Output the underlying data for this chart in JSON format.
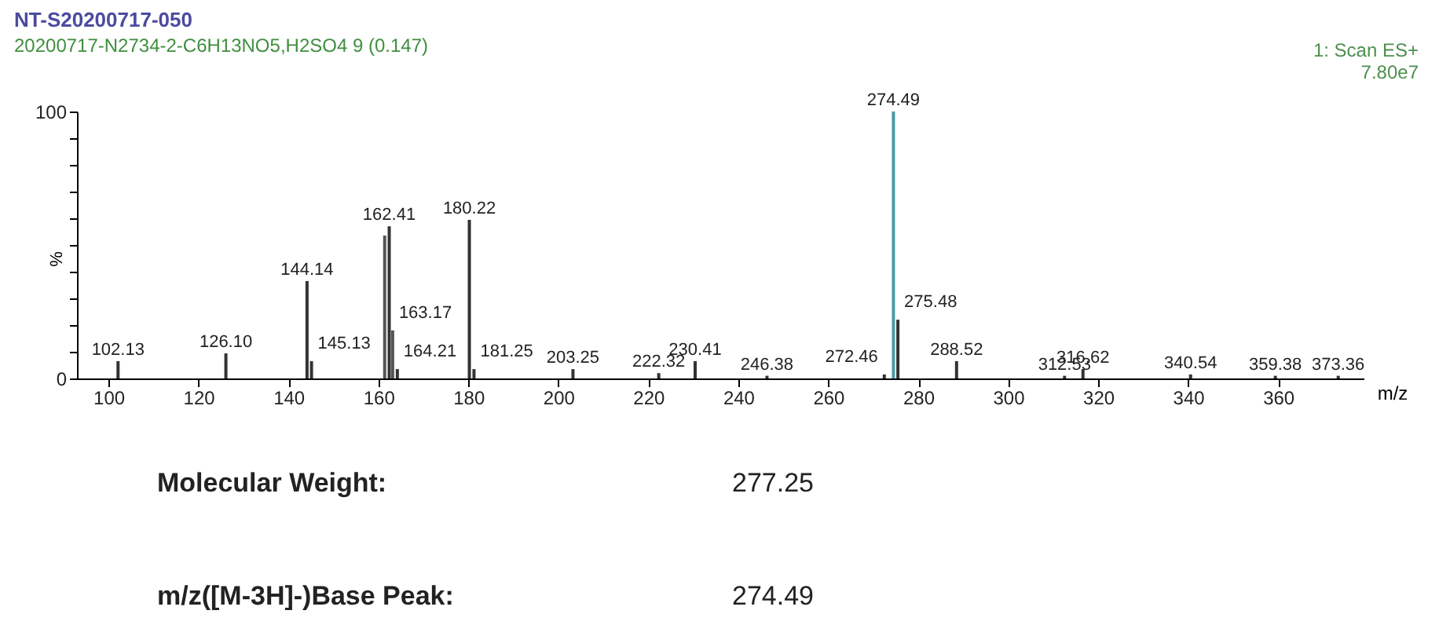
{
  "chart_data": {
    "type": "bar",
    "title": "NT-S20200717-050",
    "subtitle": "20200717-N2734-2-C6H13NO5,H2SO4 9 (0.147)",
    "xlabel": "m/z",
    "ylabel": "%",
    "x": [
      102.13,
      126.1,
      144.14,
      145.13,
      161.4,
      162.41,
      163.17,
      164.21,
      180.22,
      181.25,
      203.25,
      222.32,
      230.41,
      246.38,
      272.46,
      274.49,
      275.48,
      288.52,
      312.53,
      316.62,
      340.54,
      359.38,
      373.36
    ],
    "values": [
      6.5,
      9.4,
      36.5,
      6.5,
      53.5,
      57,
      18,
      3.5,
      59.4,
      3.5,
      3.5,
      2,
      6.5,
      1,
      1.5,
      100,
      22,
      6.5,
      1,
      3.5,
      1.5,
      1,
      1
    ],
    "colors": [
      "#333333",
      "#333333",
      "#333333",
      "#333333",
      "#555555",
      "#333333",
      "#555555",
      "#333333",
      "#333333",
      "#333333",
      "#333333",
      "#333333",
      "#333333",
      "#333333",
      "#333333",
      "#4a9aa8",
      "#333333",
      "#333333",
      "#333333",
      "#333333",
      "#333333",
      "#333333",
      "#333333"
    ],
    "xlim": [
      93,
      379
    ],
    "xticks": [
      100,
      120,
      140,
      160,
      180,
      200,
      220,
      240,
      260,
      280,
      300,
      320,
      340,
      360
    ],
    "ylim": [
      0,
      100
    ],
    "yticks": [
      0,
      {
        "value": 10,
        "label": null
      },
      {
        "value": 20,
        "label": null
      },
      {
        "value": 30,
        "label": null
      },
      {
        "value": 40,
        "label": null
      },
      {
        "value": 50,
        "label": null
      },
      {
        "value": 60,
        "label": null
      },
      {
        "value": 70,
        "label": null
      },
      {
        "value": 80,
        "label": null
      },
      {
        "value": 90,
        "label": null
      },
      100
    ],
    "grid": false,
    "annotations": [
      {
        "text": "102.13",
        "x": 102.13,
        "y": 6.5
      },
      {
        "text": "126.10",
        "x": 126.1,
        "y": 9.4
      },
      {
        "text": "144.14",
        "x": 144.14,
        "y": 36.5
      },
      {
        "text": "145.13",
        "x": 145.13,
        "y": 6.5
      },
      {
        "text": "162.41",
        "x": 162.41,
        "y": 57
      },
      {
        "text": "163.17",
        "x": 163.17,
        "y": 18
      },
      {
        "text": "164.21",
        "x": 164.21,
        "y": 3.5
      },
      {
        "text": "180.22",
        "x": 180.22,
        "y": 59.4
      },
      {
        "text": "181.25",
        "x": 181.25,
        "y": 3.5
      },
      {
        "text": "203.25",
        "x": 203.25,
        "y": 3.5
      },
      {
        "text": "222.32",
        "x": 222.32,
        "y": 2
      },
      {
        "text": "230.41",
        "x": 230.41,
        "y": 6.5
      },
      {
        "text": "246.38",
        "x": 246.38,
        "y": 1
      },
      {
        "text": "272.46",
        "x": 272.46,
        "y": 1.5
      },
      {
        "text": "274.49",
        "x": 274.49,
        "y": 100
      },
      {
        "text": "275.48",
        "x": 275.48,
        "y": 22
      },
      {
        "text": "288.52",
        "x": 288.52,
        "y": 6.5
      },
      {
        "text": "312.53",
        "x": 312.53,
        "y": 1
      },
      {
        "text": "316.62",
        "x": 316.62,
        "y": 3.5
      },
      {
        "text": "340.54",
        "x": 340.54,
        "y": 1.5
      },
      {
        "text": "359.38",
        "x": 359.38,
        "y": 1
      },
      {
        "text": "373.36",
        "x": 373.36,
        "y": 1
      },
      "1: Scan ES+",
      "7.80e7",
      "Molecular Weight:",
      "277.25",
      "m/z([M-3H]-)Base Peak:",
      "274.49"
    ]
  }
}
